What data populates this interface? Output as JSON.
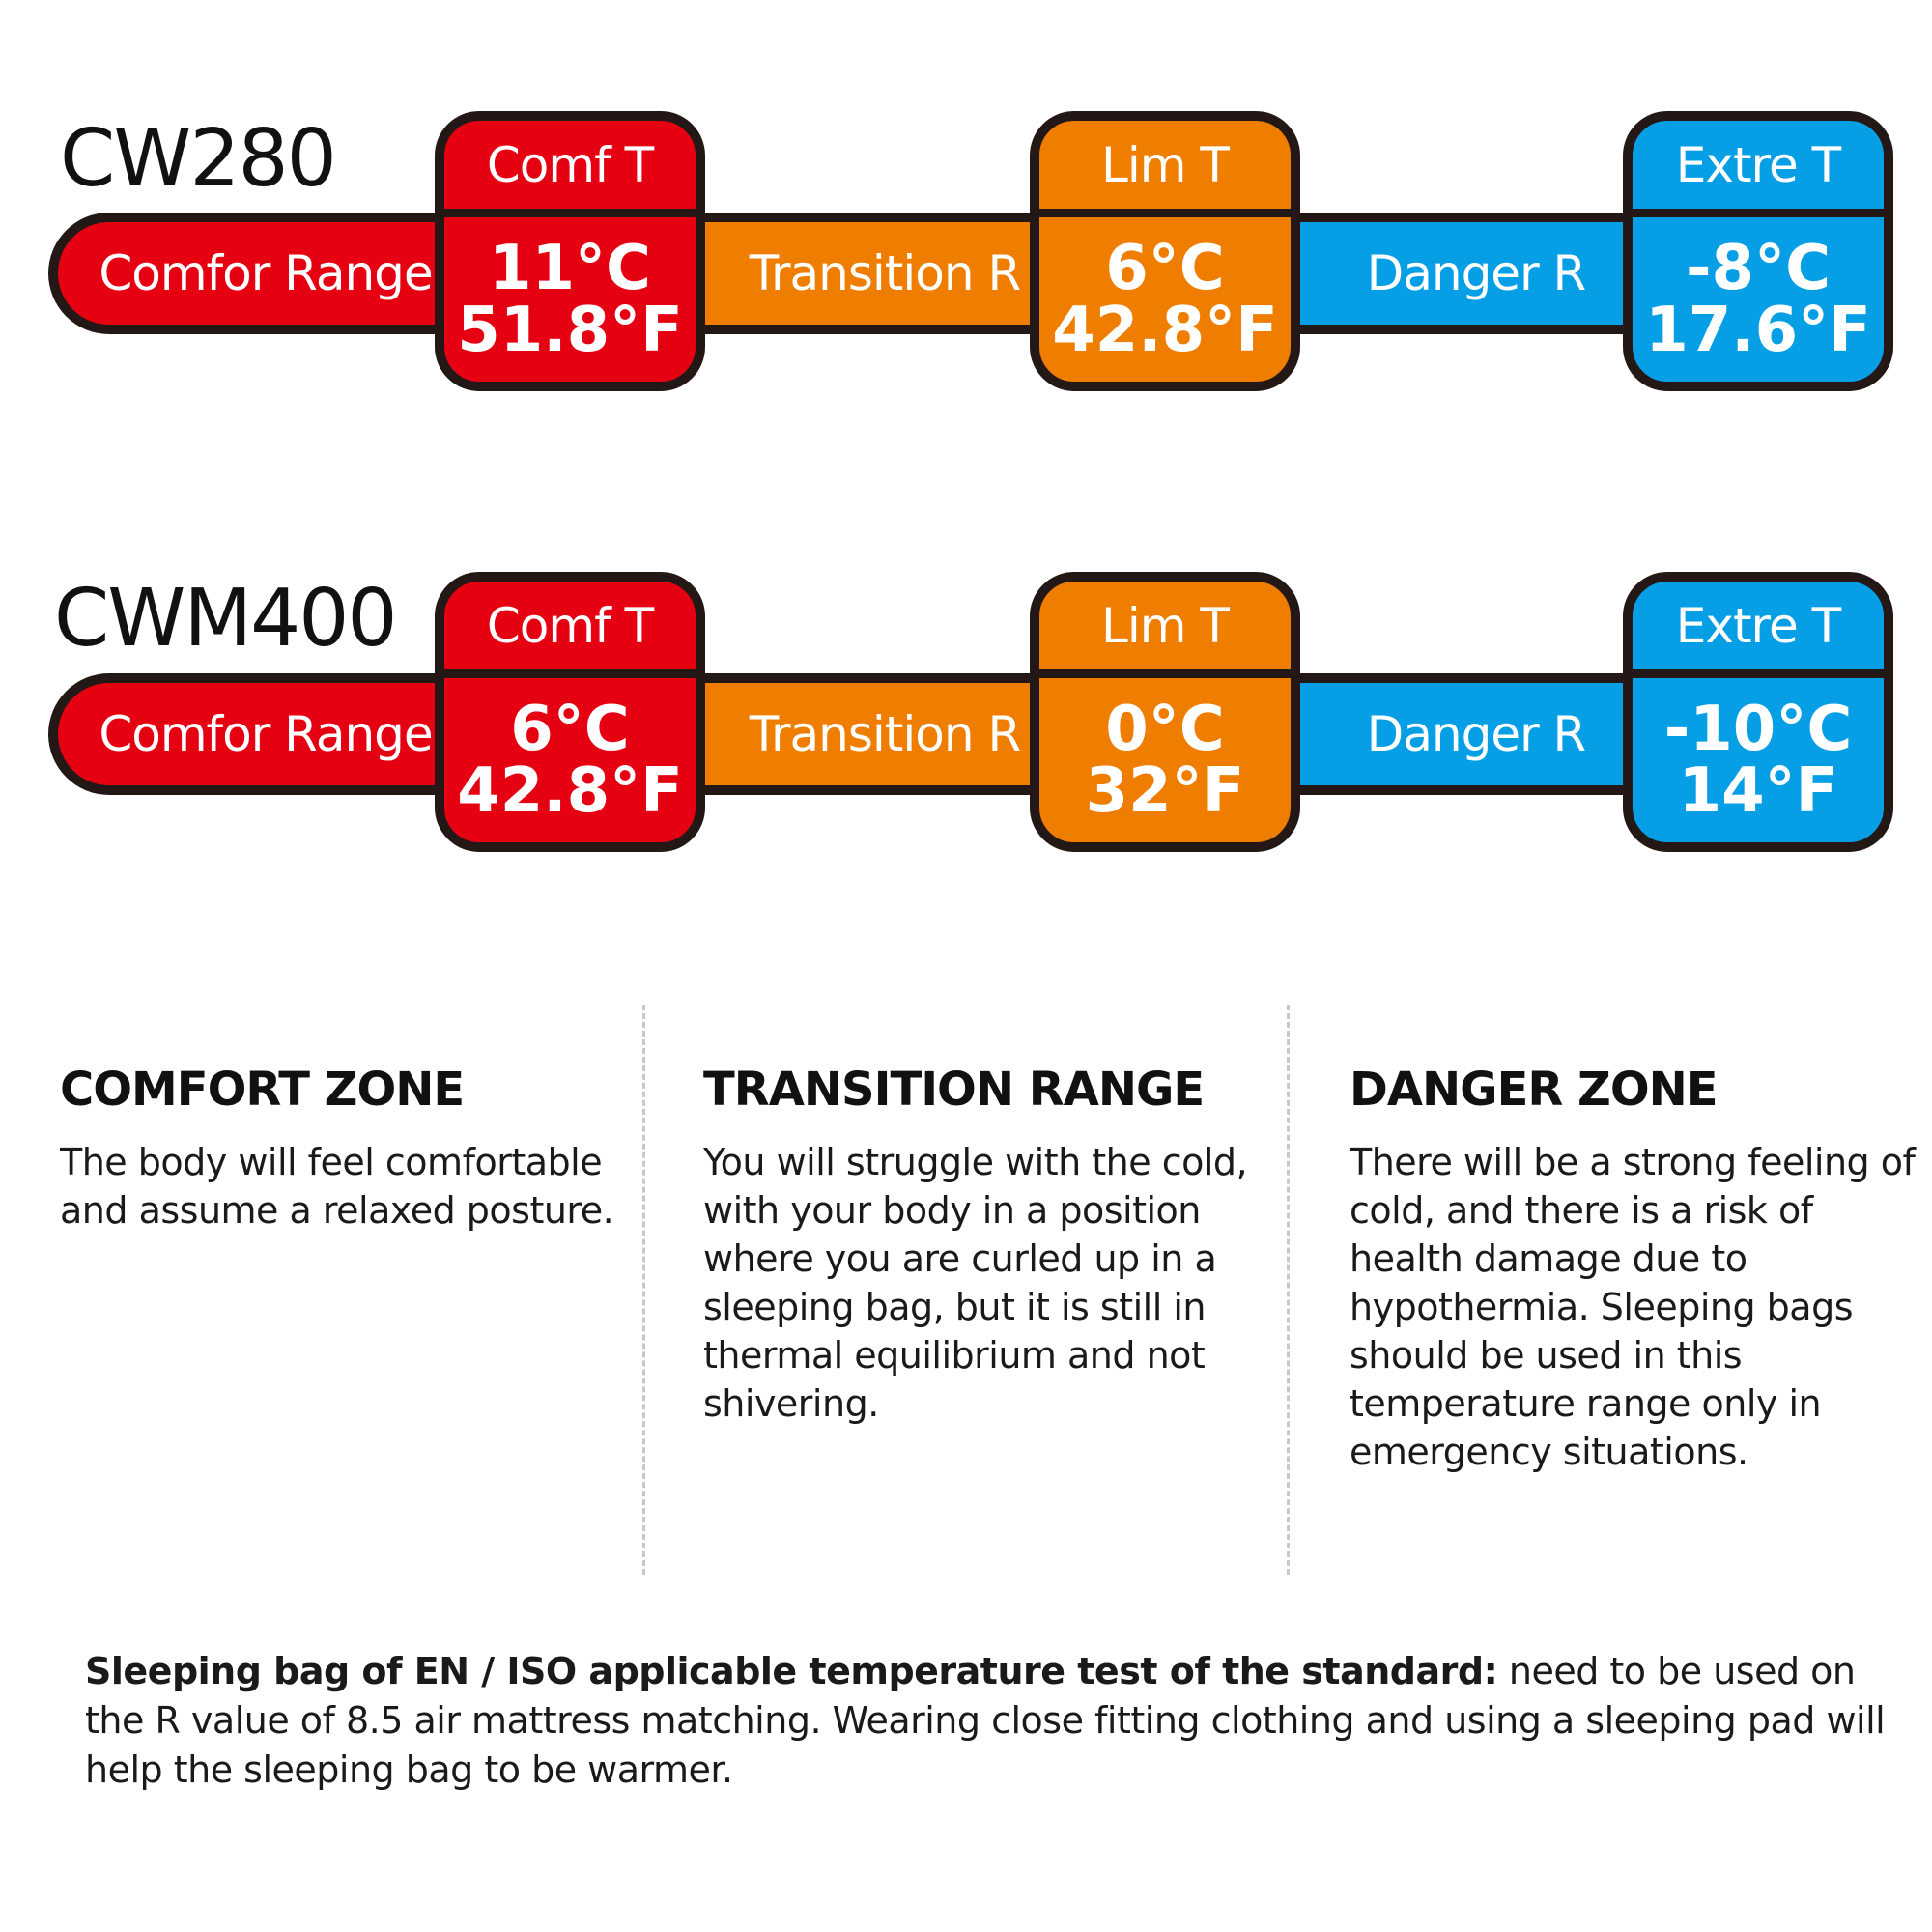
{
  "colors": {
    "comfort": "#e50012",
    "transition": "#ef7d00",
    "danger": "#069fe6",
    "outline": "#231815"
  },
  "models": [
    {
      "name": "CW280",
      "comfort_range_label": "Comfor Range",
      "transition_label": "Transition R",
      "danger_label": "Danger R",
      "comfort": {
        "label": "Comf T",
        "c": "11°C",
        "f": "51.8°F"
      },
      "limit": {
        "label": "Lim T",
        "c": "6°C",
        "f": "42.8°F"
      },
      "extreme": {
        "label": "Extre T",
        "c": "-8°C",
        "f": "17.6°F"
      }
    },
    {
      "name": "CWM400",
      "comfort_range_label": "Comfor Range",
      "transition_label": "Transition R",
      "danger_label": "Danger R",
      "comfort": {
        "label": "Comf T",
        "c": "6°C",
        "f": "42.8°F"
      },
      "limit": {
        "label": "Lim T",
        "c": "0°C",
        "f": "32°F"
      },
      "extreme": {
        "label": "Extre T",
        "c": "-10°C",
        "f": "14°F"
      }
    }
  ],
  "zones": [
    {
      "title": "COMFORT ZONE",
      "text": "The body will feel comfortable and assume a relaxed posture."
    },
    {
      "title": "TRANSITION RANGE",
      "text": "You will struggle with the cold, with your body in a position where you are curled up in a sleeping bag, but it is still in thermal equilibrium and not shivering."
    },
    {
      "title": "DANGER ZONE",
      "text": "There will be a strong feeling of cold, and there is a risk of health damage due to hypothermia. Sleeping bags should be used in this temperature range only in emergency situations."
    }
  ],
  "note": {
    "bold": "Sleeping bag of EN / ISO applicable temperature test of the standard:",
    "text": " need to be used on the R value of 8.5 air mattress matching. Wearing close fitting clothing and using a sleeping pad will help the sleeping bag to be warmer."
  }
}
